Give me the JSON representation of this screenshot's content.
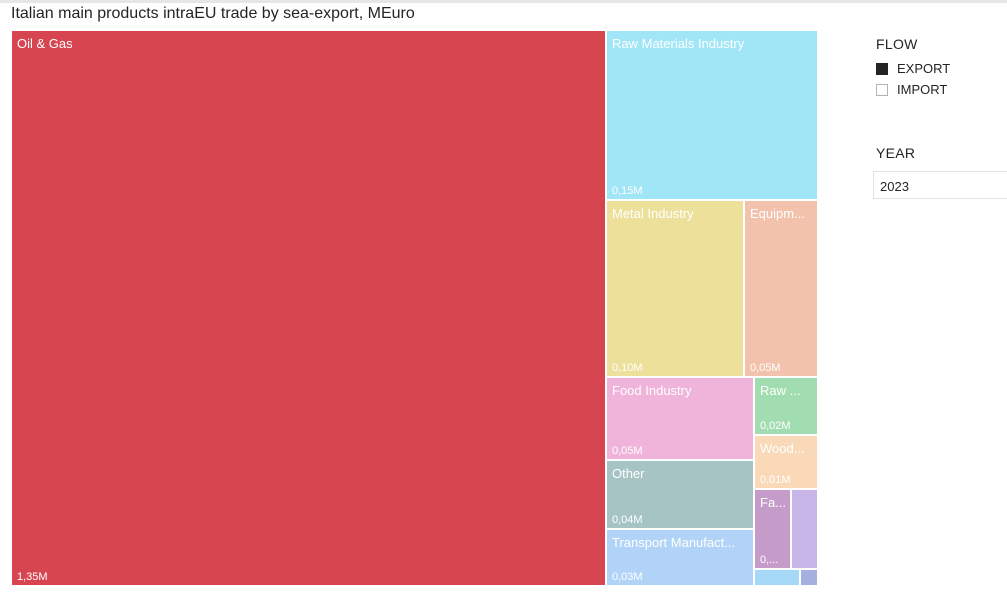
{
  "title": "Italian main products intraEU trade by sea-export, MEuro",
  "flow_slicer": {
    "title": "FLOW",
    "options": [
      {
        "label": "EXPORT",
        "checked": true
      },
      {
        "label": "IMPORT",
        "checked": false
      }
    ]
  },
  "year_slicer": {
    "title": "YEAR",
    "selected": "2023"
  },
  "chart_data": {
    "type": "treemap",
    "title": "Italian main products intraEU trade by sea-export, MEuro",
    "unit": "M",
    "items": [
      {
        "label": "Oil & Gas",
        "value_label": "1,35M",
        "value": 1.35,
        "color": "#d64550"
      },
      {
        "label": "Raw Materials Industry",
        "value_label": "0,15M",
        "value": 0.15,
        "color": "#a0e6f7"
      },
      {
        "label": "Metal Industry",
        "value_label": "0,10M",
        "value": 0.1,
        "color": "#ede09a"
      },
      {
        "label": "Equipm...",
        "value_label": "0,05M",
        "value": 0.05,
        "color": "#f2c2ad"
      },
      {
        "label": "Food Industry",
        "value_label": "0,05M",
        "value": 0.05,
        "color": "#f0b3d9"
      },
      {
        "label": "Other",
        "value_label": "0,04M",
        "value": 0.04,
        "color": "#a6c4c4"
      },
      {
        "label": "Transport Manufact...",
        "value_label": "0,03M",
        "value": 0.03,
        "color": "#b0d3f7"
      },
      {
        "label": "Raw ...",
        "value_label": "0,02M",
        "value": 0.02,
        "color": "#a2ddb1"
      },
      {
        "label": "Wood...",
        "value_label": "0,01M",
        "value": 0.01,
        "color": "#fad9b8"
      },
      {
        "label": "Fa...",
        "value_label": "0,...",
        "value": null,
        "color": "#c59bc9"
      },
      {
        "label": "",
        "value_label": "",
        "value": null,
        "color": "#c9b6e8"
      },
      {
        "label": "",
        "value_label": "",
        "value": null,
        "color": "#a6d8f7"
      },
      {
        "label": "",
        "value_label": "",
        "value": null,
        "color": "#a5afe0"
      }
    ]
  }
}
